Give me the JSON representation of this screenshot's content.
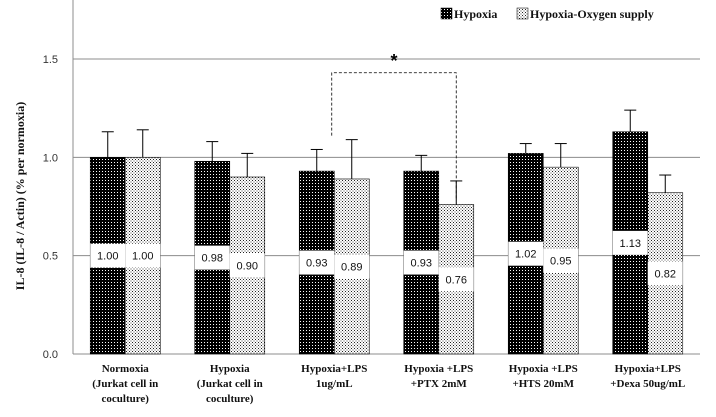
{
  "chart_data": {
    "type": "bar",
    "title": "",
    "ylabel": "IL-8 (IL-8 / Actin) (% per normoxia)",
    "xlabel": "",
    "ylim": [
      0,
      1.8
    ],
    "yticks": [
      "0.0",
      "0.5",
      "1.0",
      "1.5"
    ],
    "ytick_values": [
      0,
      0.5,
      1.0,
      1.5
    ],
    "grid": "horizontal",
    "legend_position": "top-right",
    "categories": [
      [
        "Normoxia",
        "(Jurkat cell in",
        "coculture)"
      ],
      [
        "Hypoxia",
        "(Jurkat cell in",
        "coculture)"
      ],
      [
        "Hypoxia+LPS",
        "1ug/mL"
      ],
      [
        "Hypoxia +LPS",
        "+PTX  2mM"
      ],
      [
        "Hypoxia +LPS",
        "+HTS 20mM"
      ],
      [
        "Hypoxia+LPS",
        "+Dexa 50ug/mL"
      ]
    ],
    "series": [
      {
        "name": "Hypoxia",
        "pattern": "dark-dots",
        "values": [
          1.0,
          0.98,
          0.93,
          0.93,
          1.02,
          1.13
        ],
        "labels": [
          "1.00",
          "0.98",
          "0.93",
          "0.93",
          "1.02",
          "1.13"
        ],
        "errors": [
          0.13,
          0.1,
          0.11,
          0.08,
          0.05,
          0.11
        ]
      },
      {
        "name": "Hypoxia-Oxygen supply",
        "pattern": "light-dots",
        "values": [
          1.0,
          0.9,
          0.89,
          0.76,
          0.95,
          0.82
        ],
        "labels": [
          "1.00",
          "0.90",
          "0.89",
          "0.76",
          "0.95",
          "0.82"
        ],
        "errors": [
          0.14,
          0.12,
          0.2,
          0.12,
          0.12,
          0.09
        ]
      }
    ],
    "significance": {
      "mark": "*",
      "from_category": 2,
      "to_category": 3,
      "level": 1.43
    }
  }
}
